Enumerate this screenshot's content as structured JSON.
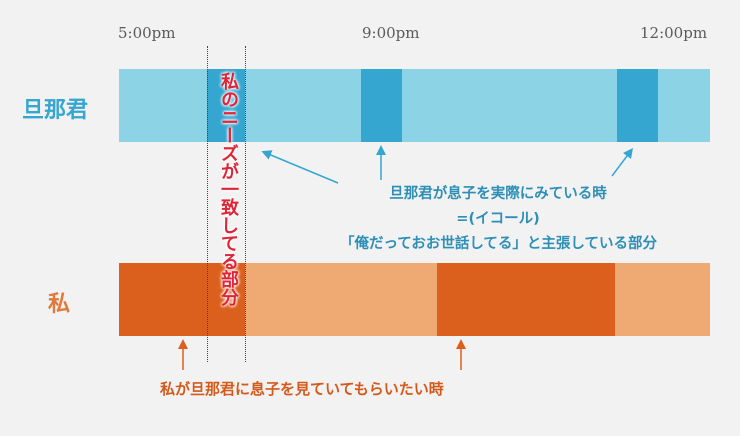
{
  "times": {
    "t1": "5:00pm",
    "t2": "9:00pm",
    "t3": "12:00pm"
  },
  "rows": {
    "husband": "旦那君",
    "me": "私"
  },
  "colors": {
    "husband_light": "#8dd3e6",
    "husband_dark": "#35a6d0",
    "me_light": "#eeaa72",
    "me_dark": "#dc601d",
    "highlight": "#e02437"
  },
  "highlight_label": "私のニーズが一致してる部分",
  "annotation_husband": {
    "line1": "旦那君が息子を実際にみている時",
    "line2": "=(イコール)",
    "line3": "「俺だっておお世話してる」と主張している部分"
  },
  "annotation_me": "私が旦那君に息子を見ていてもらいたい時"
}
